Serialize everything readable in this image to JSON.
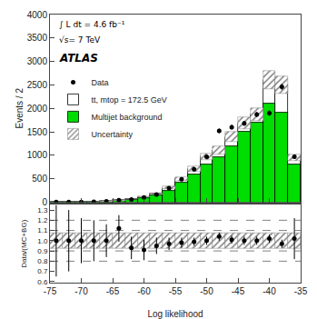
{
  "chart_data": [
    {
      "type": "bar",
      "ylabel": "Events / 2",
      "bins": [
        -75,
        -73,
        -71,
        -69,
        -67,
        -65,
        -63,
        -61,
        -59,
        -57,
        -55,
        -53,
        -51,
        -49,
        -47,
        -45,
        -43,
        -41,
        -39,
        -37,
        -35
      ],
      "xlim": [
        -75,
        -35
      ],
      "xticks": [
        -75,
        -70,
        -65,
        -60,
        -55,
        -50,
        -45,
        -40,
        -35
      ],
      "ylim": [
        0,
        4000
      ],
      "yticks": [
        0,
        500,
        1000,
        1500,
        2000,
        2500,
        3000,
        3500,
        4000
      ],
      "grid": false,
      "tick_labels": "y",
      "legend": "upper left",
      "stacked": false,
      "annotations": [
        "∫ L dt = 4.6 fb⁻¹",
        "√s= 7 TeV",
        "ATLAS"
      ],
      "series": [
        {
          "name": "Data",
          "type": "scatter",
          "color": "black",
          "marker": "circle",
          "x": [
            -74,
            -72,
            -70,
            -68,
            -66,
            -64,
            -62,
            -60,
            -58,
            -56,
            -54,
            -52,
            -50,
            -48,
            -46,
            -44,
            -42,
            -40,
            -38,
            -36
          ],
          "values": [
            3,
            4,
            6,
            10,
            18,
            42,
            60,
            100,
            165,
            300,
            490,
            700,
            970,
            1520,
            1600,
            1680,
            1870,
            1900,
            2460,
            970
          ],
          "error": [
            2,
            2,
            3,
            4,
            5,
            7,
            9,
            12,
            16,
            22,
            28,
            33,
            40,
            50,
            52,
            54,
            57,
            58,
            65,
            42
          ]
        },
        {
          "name": "tt, mtop = 172.5 GeV",
          "type": "bar",
          "color": "#ffffff",
          "values": [
            5,
            5,
            8,
            12,
            20,
            40,
            65,
            110,
            175,
            310,
            500,
            710,
            970,
            1100,
            1390,
            1680,
            1870,
            2600,
            2500,
            950
          ]
        },
        {
          "name": "Multijet background",
          "type": "bar",
          "color": "#00dd00",
          "values": [
            4,
            4,
            6,
            9,
            15,
            30,
            50,
            85,
            140,
            250,
            410,
            590,
            810,
            950,
            1200,
            1500,
            1700,
            2100,
            1900,
            800
          ]
        },
        {
          "name": "Uncertainty",
          "type": "band",
          "color": "gray",
          "values": [
            5,
            5,
            8,
            12,
            20,
            40,
            65,
            110,
            175,
            310,
            500,
            710,
            970,
            1100,
            1390,
            1680,
            1870,
            2600,
            2500,
            950
          ],
          "error": [
            0.375,
            0.375,
            0.6,
            0.9,
            1.5,
            3,
            4.875,
            8.25,
            13.125,
            23.25,
            37.5,
            53.25,
            72.75,
            82.5,
            104.25,
            126,
            140.25,
            195,
            187.5,
            71.25
          ]
        }
      ]
    },
    {
      "type": "scatter",
      "xlabel": "Log likelihood",
      "ylabel": "Data/(MC+BG)",
      "bins": [
        -75,
        -73,
        -71,
        -69,
        -67,
        -65,
        -63,
        -61,
        -59,
        -57,
        -55,
        -53,
        -51,
        -49,
        -47,
        -45,
        -43,
        -41,
        -39,
        -37,
        -35
      ],
      "xlim": [
        -75,
        -35
      ],
      "xticks": [
        -75,
        -70,
        -65,
        -60,
        -55,
        -50,
        -45,
        -40,
        -35
      ],
      "ylim": [
        0.59,
        1.35
      ],
      "yticks": [
        0.6,
        0.7,
        0.8,
        0.9,
        {
          "value": 1,
          "label": "1.0"
        },
        1.1,
        1.2,
        1.3
      ],
      "grid": false,
      "hlines": [
        {
          "value": 1,
          "color": "black",
          "line_style": "solid"
        },
        {
          "value": 1.1,
          "color": "gray",
          "line_style": "dashed"
        },
        {
          "value": 0.9,
          "color": "gray",
          "line_style": "dashed"
        },
        {
          "value": 1.2,
          "color": "gray",
          "line_style": "dashed"
        },
        {
          "value": 0.8,
          "color": "gray",
          "line_style": "dashed"
        }
      ],
      "series": [
        {
          "type": "band",
          "color": "gray",
          "values": [
            1,
            1,
            1,
            1,
            1,
            1,
            1,
            1,
            1,
            1,
            1,
            1,
            1,
            1,
            1,
            1,
            1,
            1,
            1,
            1
          ],
          "error": [
            0.075,
            0.075,
            0.075,
            0.075,
            0.075,
            0.075,
            0.075,
            0.075,
            0.075,
            0.075,
            0.075,
            0.075,
            0.075,
            0.075,
            0.075,
            0.075,
            0.075,
            0.075,
            0.075,
            0.075
          ]
        },
        {
          "type": "scatter",
          "color": "black",
          "marker": "circle",
          "x": [
            -74,
            -72,
            -70,
            -68,
            -66,
            -64,
            -62,
            -60,
            -58,
            -56,
            -54,
            -52,
            -50,
            -48,
            -46,
            -44,
            -42,
            -40,
            -38,
            -36
          ],
          "values": [
            1.0,
            1.0,
            1.0,
            1.0,
            1.0,
            1.12,
            0.93,
            0.91,
            0.95,
            0.97,
            0.98,
            0.99,
            1.0,
            1.04,
            1.01,
            1.0,
            1.0,
            1.02,
            0.97,
            1.02
          ],
          "error": [
            0.35,
            0.3,
            0.22,
            0.2,
            0.16,
            0.13,
            0.11,
            0.1,
            0.08,
            0.06,
            0.05,
            0.04,
            0.04,
            0.04,
            0.04,
            0.04,
            0.04,
            0.04,
            0.04,
            0.2
          ]
        }
      ]
    }
  ]
}
